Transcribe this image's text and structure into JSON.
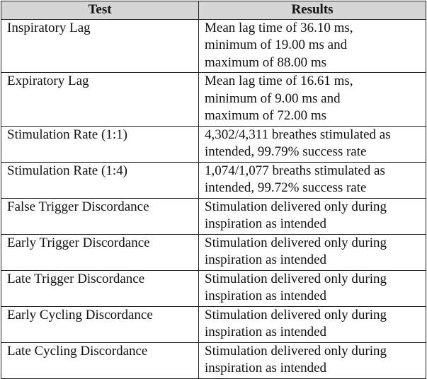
{
  "table": {
    "header": [
      "Test",
      "Results"
    ],
    "rows": [
      [
        "Inspiratory Lag",
        [
          "Mean lag time of 36.10 ms,",
          "minimum of 19.00 ms and",
          "maximum of 88.00 ms"
        ]
      ],
      [
        "Expiratory Lag",
        [
          "Mean lag time of 16.61 ms,",
          "minimum of 9.00 ms and",
          "maximum of 72.00 ms"
        ]
      ],
      [
        "Stimulation Rate (1:1)",
        [
          "4,302/4,311 breathes stimulated as",
          "intended, 99.79% success rate"
        ]
      ],
      [
        "Stimulation Rate (1:4)",
        [
          "1,074/1,077 breaths stimulated as",
          "intended, 99.72% success rate"
        ]
      ],
      [
        "False Trigger Discordance",
        [
          "Stimulation delivered only during",
          "inspiration as intended"
        ]
      ],
      [
        "Early Trigger Discordance",
        [
          "Stimulation delivered only during",
          "inspiration as intended"
        ]
      ],
      [
        "Late Trigger Discordance",
        [
          "Stimulation delivered only during",
          "inspiration as intended"
        ]
      ],
      [
        "Early Cycling Discordance",
        [
          "Stimulation delivered only during",
          "inspiration as intended"
        ]
      ],
      [
        "Late Cycling Discordance",
        [
          "Stimulation delivered only during",
          "inspiration as intended"
        ]
      ]
    ]
  }
}
